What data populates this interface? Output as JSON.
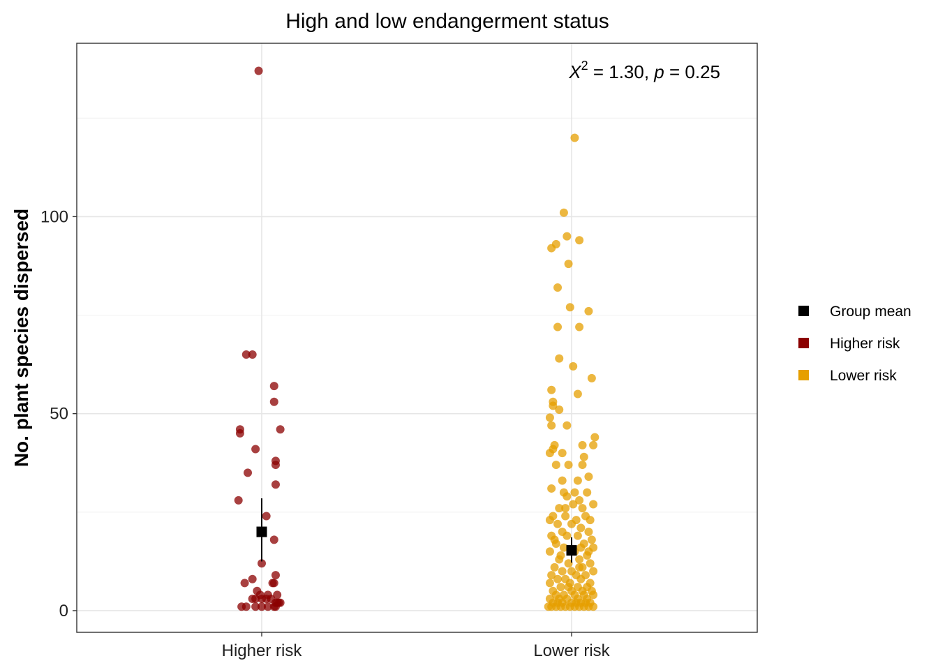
{
  "chart_data": {
    "type": "scatter",
    "title": "High and low endangerment status",
    "xlabel": "",
    "ylabel": "No. plant species dispersed",
    "categories": [
      "Higher risk",
      "Lower risk"
    ],
    "ylim": [
      -5.5,
      144
    ],
    "yticks": [
      0,
      50,
      100
    ],
    "grid": true,
    "legend_position": "right",
    "legend": [
      {
        "label": "Group mean",
        "color": "#000000"
      },
      {
        "label": "Higher risk",
        "color": "#8B0000"
      },
      {
        "label": "Lower risk",
        "color": "#E69F00"
      }
    ],
    "annotation": {
      "stat_symbol": "X",
      "stat_superscript": "2",
      "stat_value": " = 1.30, ",
      "p_symbol": "p",
      "p_value": " = 0.25"
    },
    "series": [
      {
        "name": "Higher risk",
        "category": "Higher risk",
        "color": "#8B0000",
        "mean": 20,
        "error": [
          12.5,
          28.5
        ],
        "points": [
          {
            "dx": -0.01,
            "y": 137
          },
          {
            "dx": -0.05,
            "y": 65
          },
          {
            "dx": -0.03,
            "y": 65
          },
          {
            "dx": 0.04,
            "y": 57
          },
          {
            "dx": 0.04,
            "y": 53
          },
          {
            "dx": -0.07,
            "y": 46
          },
          {
            "dx": 0.06,
            "y": 46
          },
          {
            "dx": -0.07,
            "y": 45
          },
          {
            "dx": -0.02,
            "y": 41
          },
          {
            "dx": 0.045,
            "y": 38
          },
          {
            "dx": 0.045,
            "y": 37
          },
          {
            "dx": -0.045,
            "y": 35
          },
          {
            "dx": 0.045,
            "y": 32
          },
          {
            "dx": -0.075,
            "y": 28
          },
          {
            "dx": 0.015,
            "y": 24
          },
          {
            "dx": 0.04,
            "y": 18
          },
          {
            "dx": 0.0,
            "y": 12
          },
          {
            "dx": 0.045,
            "y": 9
          },
          {
            "dx": -0.03,
            "y": 8
          },
          {
            "dx": -0.055,
            "y": 7
          },
          {
            "dx": 0.035,
            "y": 7
          },
          {
            "dx": 0.04,
            "y": 7
          },
          {
            "dx": -0.015,
            "y": 5
          },
          {
            "dx": 0.02,
            "y": 4
          },
          {
            "dx": 0.05,
            "y": 4
          },
          {
            "dx": -0.005,
            "y": 4
          },
          {
            "dx": -0.03,
            "y": 3
          },
          {
            "dx": -0.02,
            "y": 3
          },
          {
            "dx": 0.0,
            "y": 3
          },
          {
            "dx": 0.015,
            "y": 3
          },
          {
            "dx": 0.03,
            "y": 3
          },
          {
            "dx": 0.045,
            "y": 2
          },
          {
            "dx": 0.055,
            "y": 2
          },
          {
            "dx": 0.06,
            "y": 2
          },
          {
            "dx": 0.05,
            "y": 2
          },
          {
            "dx": 0.04,
            "y": 1
          },
          {
            "dx": -0.065,
            "y": 1
          },
          {
            "dx": -0.05,
            "y": 1
          },
          {
            "dx": -0.02,
            "y": 1
          },
          {
            "dx": 0.0,
            "y": 1
          },
          {
            "dx": 0.02,
            "y": 1
          },
          {
            "dx": 0.045,
            "y": 1
          }
        ]
      },
      {
        "name": "Lower risk",
        "category": "Lower risk",
        "color": "#E69F00",
        "mean": 15.3,
        "error": [
          12.2,
          18.6
        ],
        "points": [
          {
            "dx": 0.01,
            "y": 120
          },
          {
            "dx": -0.025,
            "y": 101
          },
          {
            "dx": -0.015,
            "y": 95
          },
          {
            "dx": -0.05,
            "y": 93
          },
          {
            "dx": 0.025,
            "y": 94
          },
          {
            "dx": -0.065,
            "y": 92
          },
          {
            "dx": -0.01,
            "y": 88
          },
          {
            "dx": -0.045,
            "y": 82
          },
          {
            "dx": -0.005,
            "y": 77
          },
          {
            "dx": 0.055,
            "y": 76
          },
          {
            "dx": -0.045,
            "y": 72
          },
          {
            "dx": 0.025,
            "y": 72
          },
          {
            "dx": -0.04,
            "y": 64
          },
          {
            "dx": 0.005,
            "y": 62
          },
          {
            "dx": 0.065,
            "y": 59
          },
          {
            "dx": -0.065,
            "y": 56
          },
          {
            "dx": 0.02,
            "y": 55
          },
          {
            "dx": -0.06,
            "y": 53
          },
          {
            "dx": -0.06,
            "y": 52
          },
          {
            "dx": -0.04,
            "y": 51
          },
          {
            "dx": -0.07,
            "y": 49
          },
          {
            "dx": -0.065,
            "y": 47
          },
          {
            "dx": -0.015,
            "y": 47
          },
          {
            "dx": 0.075,
            "y": 44
          },
          {
            "dx": -0.055,
            "y": 42
          },
          {
            "dx": 0.035,
            "y": 42
          },
          {
            "dx": 0.07,
            "y": 42
          },
          {
            "dx": -0.06,
            "y": 41
          },
          {
            "dx": -0.07,
            "y": 40
          },
          {
            "dx": -0.03,
            "y": 40
          },
          {
            "dx": 0.04,
            "y": 39
          },
          {
            "dx": -0.05,
            "y": 37
          },
          {
            "dx": -0.01,
            "y": 37
          },
          {
            "dx": 0.035,
            "y": 37
          },
          {
            "dx": 0.055,
            "y": 34
          },
          {
            "dx": -0.03,
            "y": 33
          },
          {
            "dx": 0.02,
            "y": 33
          },
          {
            "dx": -0.065,
            "y": 31
          },
          {
            "dx": -0.025,
            "y": 30
          },
          {
            "dx": 0.01,
            "y": 30
          },
          {
            "dx": 0.05,
            "y": 30
          },
          {
            "dx": -0.015,
            "y": 29
          },
          {
            "dx": 0.025,
            "y": 28
          },
          {
            "dx": 0.005,
            "y": 27
          },
          {
            "dx": 0.07,
            "y": 27
          },
          {
            "dx": -0.04,
            "y": 26
          },
          {
            "dx": 0.035,
            "y": 26
          },
          {
            "dx": -0.06,
            "y": 24
          },
          {
            "dx": -0.02,
            "y": 24
          },
          {
            "dx": 0.045,
            "y": 24
          },
          {
            "dx": -0.07,
            "y": 23
          },
          {
            "dx": 0.015,
            "y": 23
          },
          {
            "dx": 0.06,
            "y": 23
          },
          {
            "dx": -0.045,
            "y": 22
          },
          {
            "dx": 0.0,
            "y": 22
          },
          {
            "dx": 0.03,
            "y": 21
          },
          {
            "dx": -0.03,
            "y": 20
          },
          {
            "dx": 0.055,
            "y": 20
          },
          {
            "dx": -0.065,
            "y": 19
          },
          {
            "dx": -0.015,
            "y": 19
          },
          {
            "dx": 0.02,
            "y": 19
          },
          {
            "dx": 0.065,
            "y": 18
          },
          {
            "dx": -0.05,
            "y": 17
          },
          {
            "dx": 0.04,
            "y": 17
          },
          {
            "dx": 0.07,
            "y": 16
          },
          {
            "dx": -0.025,
            "y": 16
          },
          {
            "dx": 0.01,
            "y": 15
          },
          {
            "dx": -0.07,
            "y": 15
          },
          {
            "dx": 0.05,
            "y": 14
          },
          {
            "dx": -0.04,
            "y": 13
          },
          {
            "dx": 0.025,
            "y": 13
          },
          {
            "dx": -0.01,
            "y": 12
          },
          {
            "dx": 0.06,
            "y": 12
          },
          {
            "dx": -0.055,
            "y": 11
          },
          {
            "dx": 0.035,
            "y": 11
          },
          {
            "dx": 0.0,
            "y": 10
          },
          {
            "dx": -0.03,
            "y": 10
          },
          {
            "dx": 0.07,
            "y": 10
          },
          {
            "dx": -0.065,
            "y": 9
          },
          {
            "dx": 0.015,
            "y": 9
          },
          {
            "dx": 0.045,
            "y": 9
          },
          {
            "dx": -0.02,
            "y": 8
          },
          {
            "dx": -0.045,
            "y": 8
          },
          {
            "dx": 0.03,
            "y": 8
          },
          {
            "dx": 0.06,
            "y": 7
          },
          {
            "dx": -0.07,
            "y": 7
          },
          {
            "dx": -0.005,
            "y": 7
          },
          {
            "dx": 0.02,
            "y": 6
          },
          {
            "dx": -0.035,
            "y": 6
          },
          {
            "dx": 0.05,
            "y": 6
          },
          {
            "dx": -0.06,
            "y": 5
          },
          {
            "dx": 0.0,
            "y": 5
          },
          {
            "dx": 0.035,
            "y": 5
          },
          {
            "dx": 0.065,
            "y": 5
          },
          {
            "dx": -0.025,
            "y": 4
          },
          {
            "dx": -0.05,
            "y": 4
          },
          {
            "dx": 0.01,
            "y": 4
          },
          {
            "dx": 0.04,
            "y": 4
          },
          {
            "dx": 0.07,
            "y": 4
          },
          {
            "dx": -0.07,
            "y": 3
          },
          {
            "dx": -0.04,
            "y": 3
          },
          {
            "dx": -0.015,
            "y": 3
          },
          {
            "dx": 0.02,
            "y": 3
          },
          {
            "dx": 0.05,
            "y": 3
          },
          {
            "dx": -0.06,
            "y": 2
          },
          {
            "dx": -0.03,
            "y": 2
          },
          {
            "dx": 0.0,
            "y": 2
          },
          {
            "dx": 0.03,
            "y": 2
          },
          {
            "dx": 0.06,
            "y": 2
          },
          {
            "dx": -0.075,
            "y": 1
          },
          {
            "dx": -0.05,
            "y": 1
          },
          {
            "dx": -0.02,
            "y": 1
          },
          {
            "dx": 0.01,
            "y": 1
          },
          {
            "dx": 0.04,
            "y": 1
          },
          {
            "dx": 0.07,
            "y": 1
          },
          {
            "dx": -0.065,
            "y": 1
          },
          {
            "dx": -0.035,
            "y": 1
          },
          {
            "dx": -0.005,
            "y": 1
          },
          {
            "dx": 0.025,
            "y": 1
          },
          {
            "dx": 0.055,
            "y": 1
          },
          {
            "dx": -0.045,
            "y": 2
          },
          {
            "dx": 0.015,
            "y": 2
          },
          {
            "dx": 0.045,
            "y": 2
          },
          {
            "dx": -0.01,
            "y": 6
          },
          {
            "dx": 0.025,
            "y": 11
          },
          {
            "dx": -0.035,
            "y": 14
          },
          {
            "dx": 0.055,
            "y": 15
          },
          {
            "dx": -0.055,
            "y": 18
          },
          {
            "dx": 0.03,
            "y": 16
          },
          {
            "dx": -0.02,
            "y": 26
          }
        ]
      }
    ]
  }
}
